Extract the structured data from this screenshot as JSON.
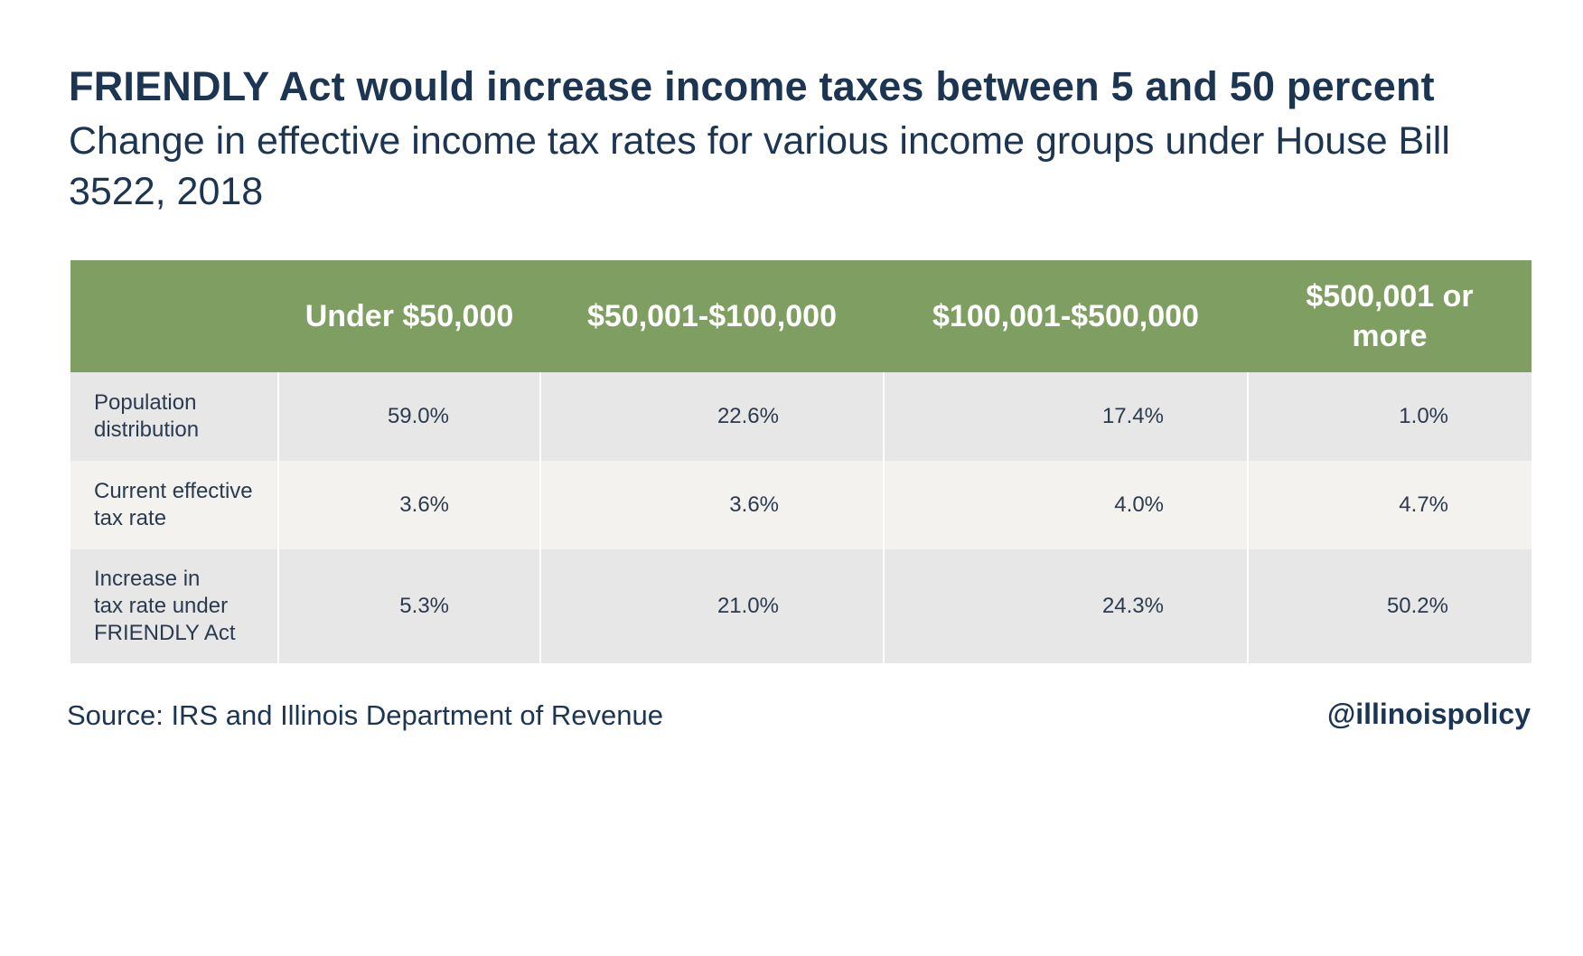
{
  "chart_data": {
    "type": "table",
    "title": "FRIENDLY Act would increase income taxes between 5 and 50 percent",
    "subtitle": "Change in effective income tax rates for various income groups under House Bill 3522, 2018",
    "columns": [
      "",
      "Under $50,000",
      "$50,001-$100,000",
      "$100,001-$500,000",
      "$500,001 or more"
    ],
    "rows": [
      {
        "label": "Population\ndistribution",
        "values": [
          "59.0%",
          "22.6%",
          "17.4%",
          "1.0%"
        ]
      },
      {
        "label": "Current effective\ntax rate",
        "values": [
          "3.6%",
          "3.6%",
          "4.0%",
          "4.7%"
        ]
      },
      {
        "label": "Increase in\ntax rate under\nFRIENDLY Act",
        "values": [
          "5.3%",
          "21.0%",
          "24.3%",
          "50.2%"
        ]
      }
    ],
    "source": "Source: IRS and Illinois Department of Revenue",
    "handle": "@illinoispolicy",
    "colors": {
      "header_bg": "#7f9f62",
      "header_text": "#ffffff",
      "row_shade": "#e8e7e8",
      "row_light": "#f4f2ef",
      "text": "#1c3553"
    }
  }
}
